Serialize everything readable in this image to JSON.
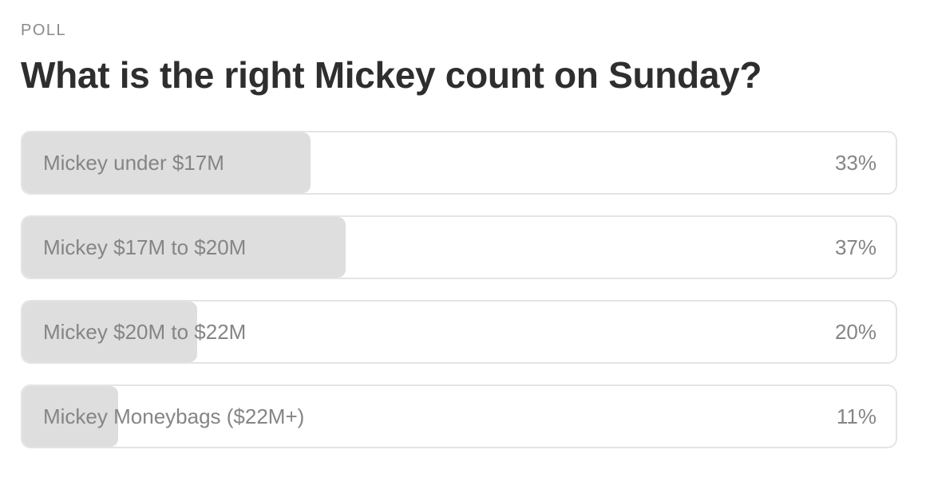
{
  "poll": {
    "label": "POLL",
    "question": "What is the right Mickey count on Sunday?",
    "options": [
      {
        "label": "Mickey under $17M",
        "percent_text": "33%",
        "share": 0.33
      },
      {
        "label": "Mickey $17M to $20M",
        "percent_text": "37%",
        "share": 0.37
      },
      {
        "label": "Mickey $20M to $22M",
        "percent_text": "20%",
        "share": 0.2
      },
      {
        "label": "Mickey Moneybags ($22M+)",
        "percent_text": "11%",
        "share": 0.11
      }
    ]
  }
}
